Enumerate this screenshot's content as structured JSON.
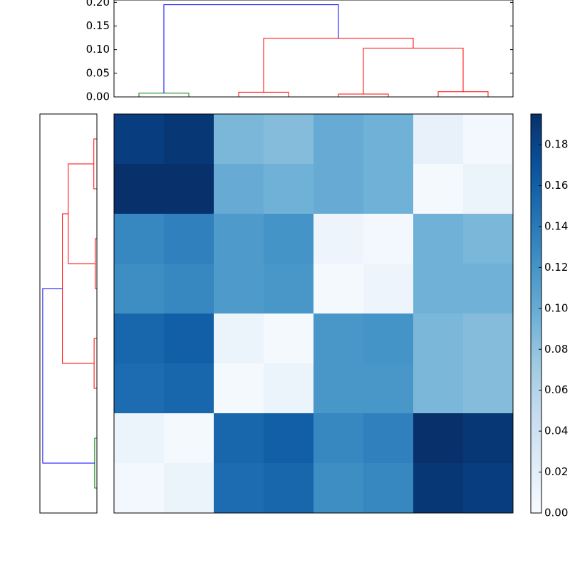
{
  "chart_data": {
    "type": "clustermap",
    "colormap": "Blues",
    "matrix": [
      [
        0.185,
        0.19,
        0.09,
        0.085,
        0.1,
        0.095,
        0.015,
        0.005
      ],
      [
        0.195,
        0.195,
        0.1,
        0.095,
        0.1,
        0.095,
        0.003,
        0.012
      ],
      [
        0.13,
        0.135,
        0.115,
        0.12,
        0.01,
        0.004,
        0.095,
        0.09
      ],
      [
        0.125,
        0.13,
        0.115,
        0.118,
        0.003,
        0.01,
        0.095,
        0.095
      ],
      [
        0.155,
        0.16,
        0.012,
        0.003,
        0.118,
        0.12,
        0.09,
        0.085
      ],
      [
        0.15,
        0.155,
        0.003,
        0.012,
        0.118,
        0.118,
        0.09,
        0.085
      ],
      [
        0.012,
        0.003,
        0.155,
        0.16,
        0.13,
        0.135,
        0.195,
        0.19
      ],
      [
        0.004,
        0.012,
        0.15,
        0.155,
        0.125,
        0.13,
        0.19,
        0.185
      ]
    ],
    "clim": [
      0,
      0.195
    ],
    "cticks": [
      {
        "value": 0,
        "label": "0.00"
      },
      {
        "value": 0.02,
        "label": "0.02"
      },
      {
        "value": 0.04,
        "label": "0.04"
      },
      {
        "value": 0.06,
        "label": "0.06"
      },
      {
        "value": 0.08,
        "label": "0.08"
      },
      {
        "value": 0.1,
        "label": "0.10"
      },
      {
        "value": 0.12,
        "label": "0.12"
      },
      {
        "value": 0.14,
        "label": "0.14"
      },
      {
        "value": 0.16,
        "label": "0.16"
      },
      {
        "value": 0.18,
        "label": "0.18"
      }
    ],
    "dendrogram": {
      "ylim": [
        0,
        0.205
      ],
      "yticks": [
        {
          "value": 0,
          "label": "0.00"
        },
        {
          "value": 0.05,
          "label": "0.05"
        },
        {
          "value": 0.1,
          "label": "0.10"
        },
        {
          "value": 0.15,
          "label": "0.15"
        },
        {
          "value": 0.2,
          "label": "0.20"
        }
      ],
      "merges": [
        {
          "children": [
            0,
            1
          ],
          "height": 0.008,
          "color": "#008000"
        },
        {
          "children": [
            2,
            3
          ],
          "height": 0.01,
          "color": "#ff0000"
        },
        {
          "children": [
            4,
            5
          ],
          "height": 0.006,
          "color": "#ff0000"
        },
        {
          "children": [
            6,
            7
          ],
          "height": 0.011,
          "color": "#ff0000"
        },
        {
          "children": [
            10,
            11
          ],
          "height": 0.103,
          "color": "#ff0000"
        },
        {
          "children": [
            9,
            12
          ],
          "height": 0.124,
          "color": "#ff0000"
        },
        {
          "children": [
            8,
            13
          ],
          "height": 0.195,
          "color": "#0000ff"
        }
      ]
    }
  }
}
